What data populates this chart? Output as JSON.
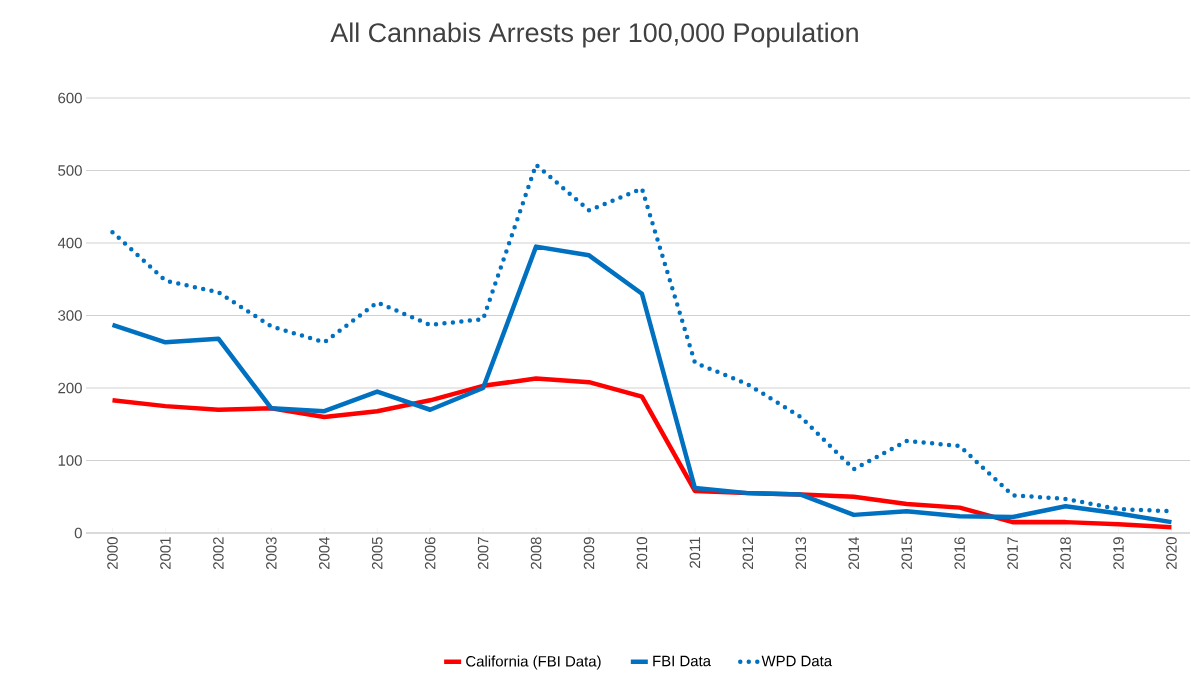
{
  "chart_data": {
    "type": "line",
    "title": "All Cannabis Arrests per 100,000 Population",
    "categories": [
      "2000",
      "2001",
      "2002",
      "2003",
      "2004",
      "2005",
      "2006",
      "2007",
      "2008",
      "2009",
      "2010",
      "2011",
      "2012",
      "2013",
      "2014",
      "2015",
      "2016",
      "2017",
      "2018",
      "2019",
      "2020"
    ],
    "series": [
      {
        "name": "California (FBI Data)",
        "color": "#ff0000",
        "line_style": "solid",
        "values": [
          183,
          175,
          170,
          172,
          160,
          168,
          183,
          203,
          213,
          208,
          188,
          58,
          55,
          53,
          50,
          40,
          35,
          15,
          15,
          12,
          8
        ]
      },
      {
        "name": "FBI Data",
        "color": "#0070c0",
        "line_style": "solid",
        "values": [
          287,
          263,
          268,
          172,
          168,
          195,
          170,
          200,
          395,
          383,
          330,
          62,
          55,
          53,
          25,
          30,
          23,
          22,
          37,
          27,
          15
        ]
      },
      {
        "name": "WPD Data",
        "color": "#0070c0",
        "line_style": "dotted",
        "values": [
          415,
          348,
          332,
          285,
          263,
          318,
          287,
          295,
          508,
          445,
          475,
          235,
          205,
          160,
          88,
          127,
          120,
          52,
          47,
          33,
          30
        ]
      }
    ],
    "ylim": [
      0,
      600
    ],
    "yticks": [
      0,
      100,
      200,
      300,
      400,
      500,
      600
    ],
    "grid": "y",
    "legend": "bottom"
  }
}
